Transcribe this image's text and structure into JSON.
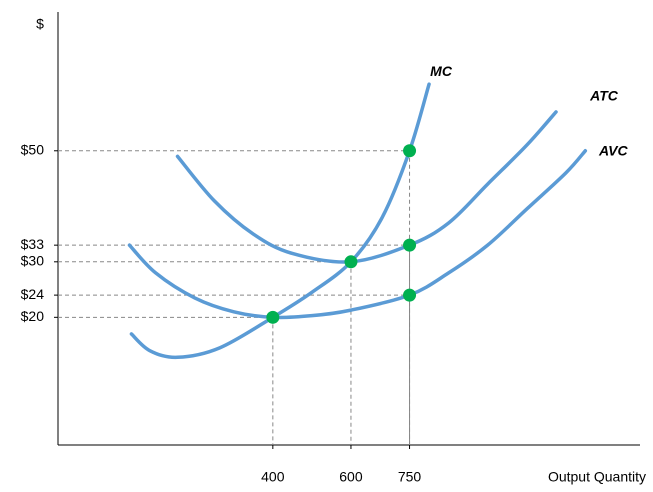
{
  "chart_data": {
    "type": "line",
    "y_label": "$",
    "x_label": "Output Quantity",
    "xlim": [
      -150,
      1340
    ],
    "ylim": [
      -3,
      75
    ],
    "xticks": [
      400,
      600,
      750
    ],
    "yticks": [
      {
        "value": 50,
        "label": "$50"
      },
      {
        "value": 33,
        "label": "$33"
      },
      {
        "value": 30,
        "label": "$30"
      },
      {
        "value": 24,
        "label": "$24"
      },
      {
        "value": 20,
        "label": "$20"
      }
    ],
    "series": [
      {
        "name": "MC",
        "color": "#5b9bd5",
        "x": [
          38,
          85,
          156,
          264,
          400,
          500,
          600,
          680,
          750,
          800
        ],
        "values": [
          17,
          14,
          12.8,
          14.5,
          20,
          24.5,
          30,
          38,
          50,
          62
        ]
      },
      {
        "name": "ATC",
        "color": "#5b9bd5",
        "x": [
          156,
          250,
          350,
          450,
          600,
          750,
          850,
          950,
          1050,
          1125
        ],
        "values": [
          49,
          41,
          35,
          31.5,
          30,
          33,
          37,
          44,
          51,
          57
        ]
      },
      {
        "name": "AVC",
        "color": "#5b9bd5",
        "x": [
          33,
          100,
          200,
          300,
          400,
          500,
          600,
          750,
          850,
          950,
          1050,
          1150,
          1200
        ],
        "values": [
          33,
          28,
          23.5,
          21,
          20,
          20.3,
          21.3,
          24,
          28,
          33,
          39.5,
          46,
          50
        ]
      }
    ],
    "points": {
      "color": "#00b050",
      "x": [
        400,
        600,
        750,
        750,
        750
      ],
      "values": [
        20,
        30,
        33,
        50,
        24
      ]
    }
  }
}
